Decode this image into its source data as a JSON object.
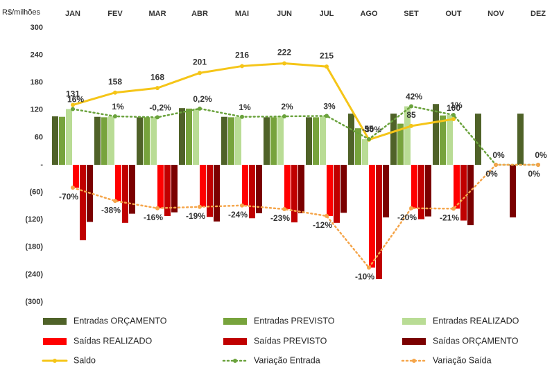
{
  "chart_data": {
    "type": "bar",
    "y_label": "R$/milhões",
    "categories": [
      "JAN",
      "FEV",
      "MAR",
      "ABR",
      "MAI",
      "JUN",
      "JUL",
      "AGO",
      "SET",
      "OUT",
      "NOV",
      "DEZ"
    ],
    "ylim": [
      -300,
      300
    ],
    "yticks": [
      300,
      240,
      180,
      120,
      60,
      {
        "value": 0,
        "label": "-"
      },
      {
        "value": -60,
        "label": "(60)"
      },
      {
        "value": -120,
        "label": "(120)"
      },
      {
        "value": -180,
        "label": "(180)"
      },
      {
        "value": -240,
        "label": "(240)"
      },
      {
        "value": -300,
        "label": "(300)"
      }
    ],
    "series": [
      {
        "name": "Entradas ORÇAMENTO",
        "type": "bar",
        "color": "#4f6228",
        "values": [
          106,
          105,
          104,
          124,
          105,
          104,
          104,
          112,
          112,
          133,
          112,
          112
        ]
      },
      {
        "name": "Entradas PREVISTO",
        "type": "bar",
        "color": "#77a33c",
        "values": [
          105,
          104,
          104,
          123,
          104,
          104,
          104,
          80,
          90,
          108,
          0,
          0
        ]
      },
      {
        "name": "Entradas REALIZADO",
        "type": "bar",
        "color": "#b9dc95",
        "values": [
          122,
          106,
          104,
          123,
          105,
          106,
          107,
          56,
          128,
          109,
          0,
          0
        ]
      },
      {
        "name": "Saídas REALIZADO",
        "type": "bar",
        "color": "#ff0000",
        "values": [
          -50,
          -79,
          -95,
          -92,
          -89,
          -97,
          -112,
          -225,
          -95,
          -96,
          0,
          0
        ]
      },
      {
        "name": "Saídas PREVISTO",
        "type": "bar",
        "color": "#c00000",
        "values": [
          -165,
          -127,
          -112,
          -114,
          -117,
          -126,
          -127,
          -250,
          -119,
          -122,
          0,
          0
        ]
      },
      {
        "name": "Saídas ORÇAMENTO",
        "type": "bar",
        "color": "#7b0000",
        "values": [
          -125,
          -107,
          -104,
          -124,
          -106,
          -106,
          -105,
          -115,
          -113,
          -132,
          -115,
          0
        ]
      },
      {
        "name": "Saldo",
        "type": "line",
        "color": "#f5c518",
        "values": [
          131,
          158,
          168,
          201,
          216,
          222,
          215,
          55,
          85,
          100,
          null,
          null
        ]
      },
      {
        "name": "Variação Entrada",
        "type": "line",
        "style": "dotted",
        "color": "#6aa23c",
        "values": [
          16,
          1,
          -0.2,
          0.2,
          1,
          2,
          3,
          -30,
          42,
          1,
          0,
          0
        ],
        "value_labels": [
          "16%",
          "1%",
          "-0,2%",
          "0,2%",
          "1%",
          "2%",
          "3%",
          "-30%",
          "42%",
          "1%",
          "0%",
          "0%"
        ]
      },
      {
        "name": "Variação Saída",
        "type": "line",
        "style": "dotted",
        "color": "#f5a54a",
        "values": [
          -70,
          -38,
          -16,
          -19,
          -24,
          -23,
          -12,
          -10,
          -20,
          -21,
          0,
          0
        ],
        "value_labels": [
          "-70%",
          "-38%",
          "-16%",
          "-19%",
          "-24%",
          "-23%",
          "-12%",
          "-10%",
          "-20%",
          "-21%",
          "0%",
          "0%"
        ]
      }
    ]
  }
}
